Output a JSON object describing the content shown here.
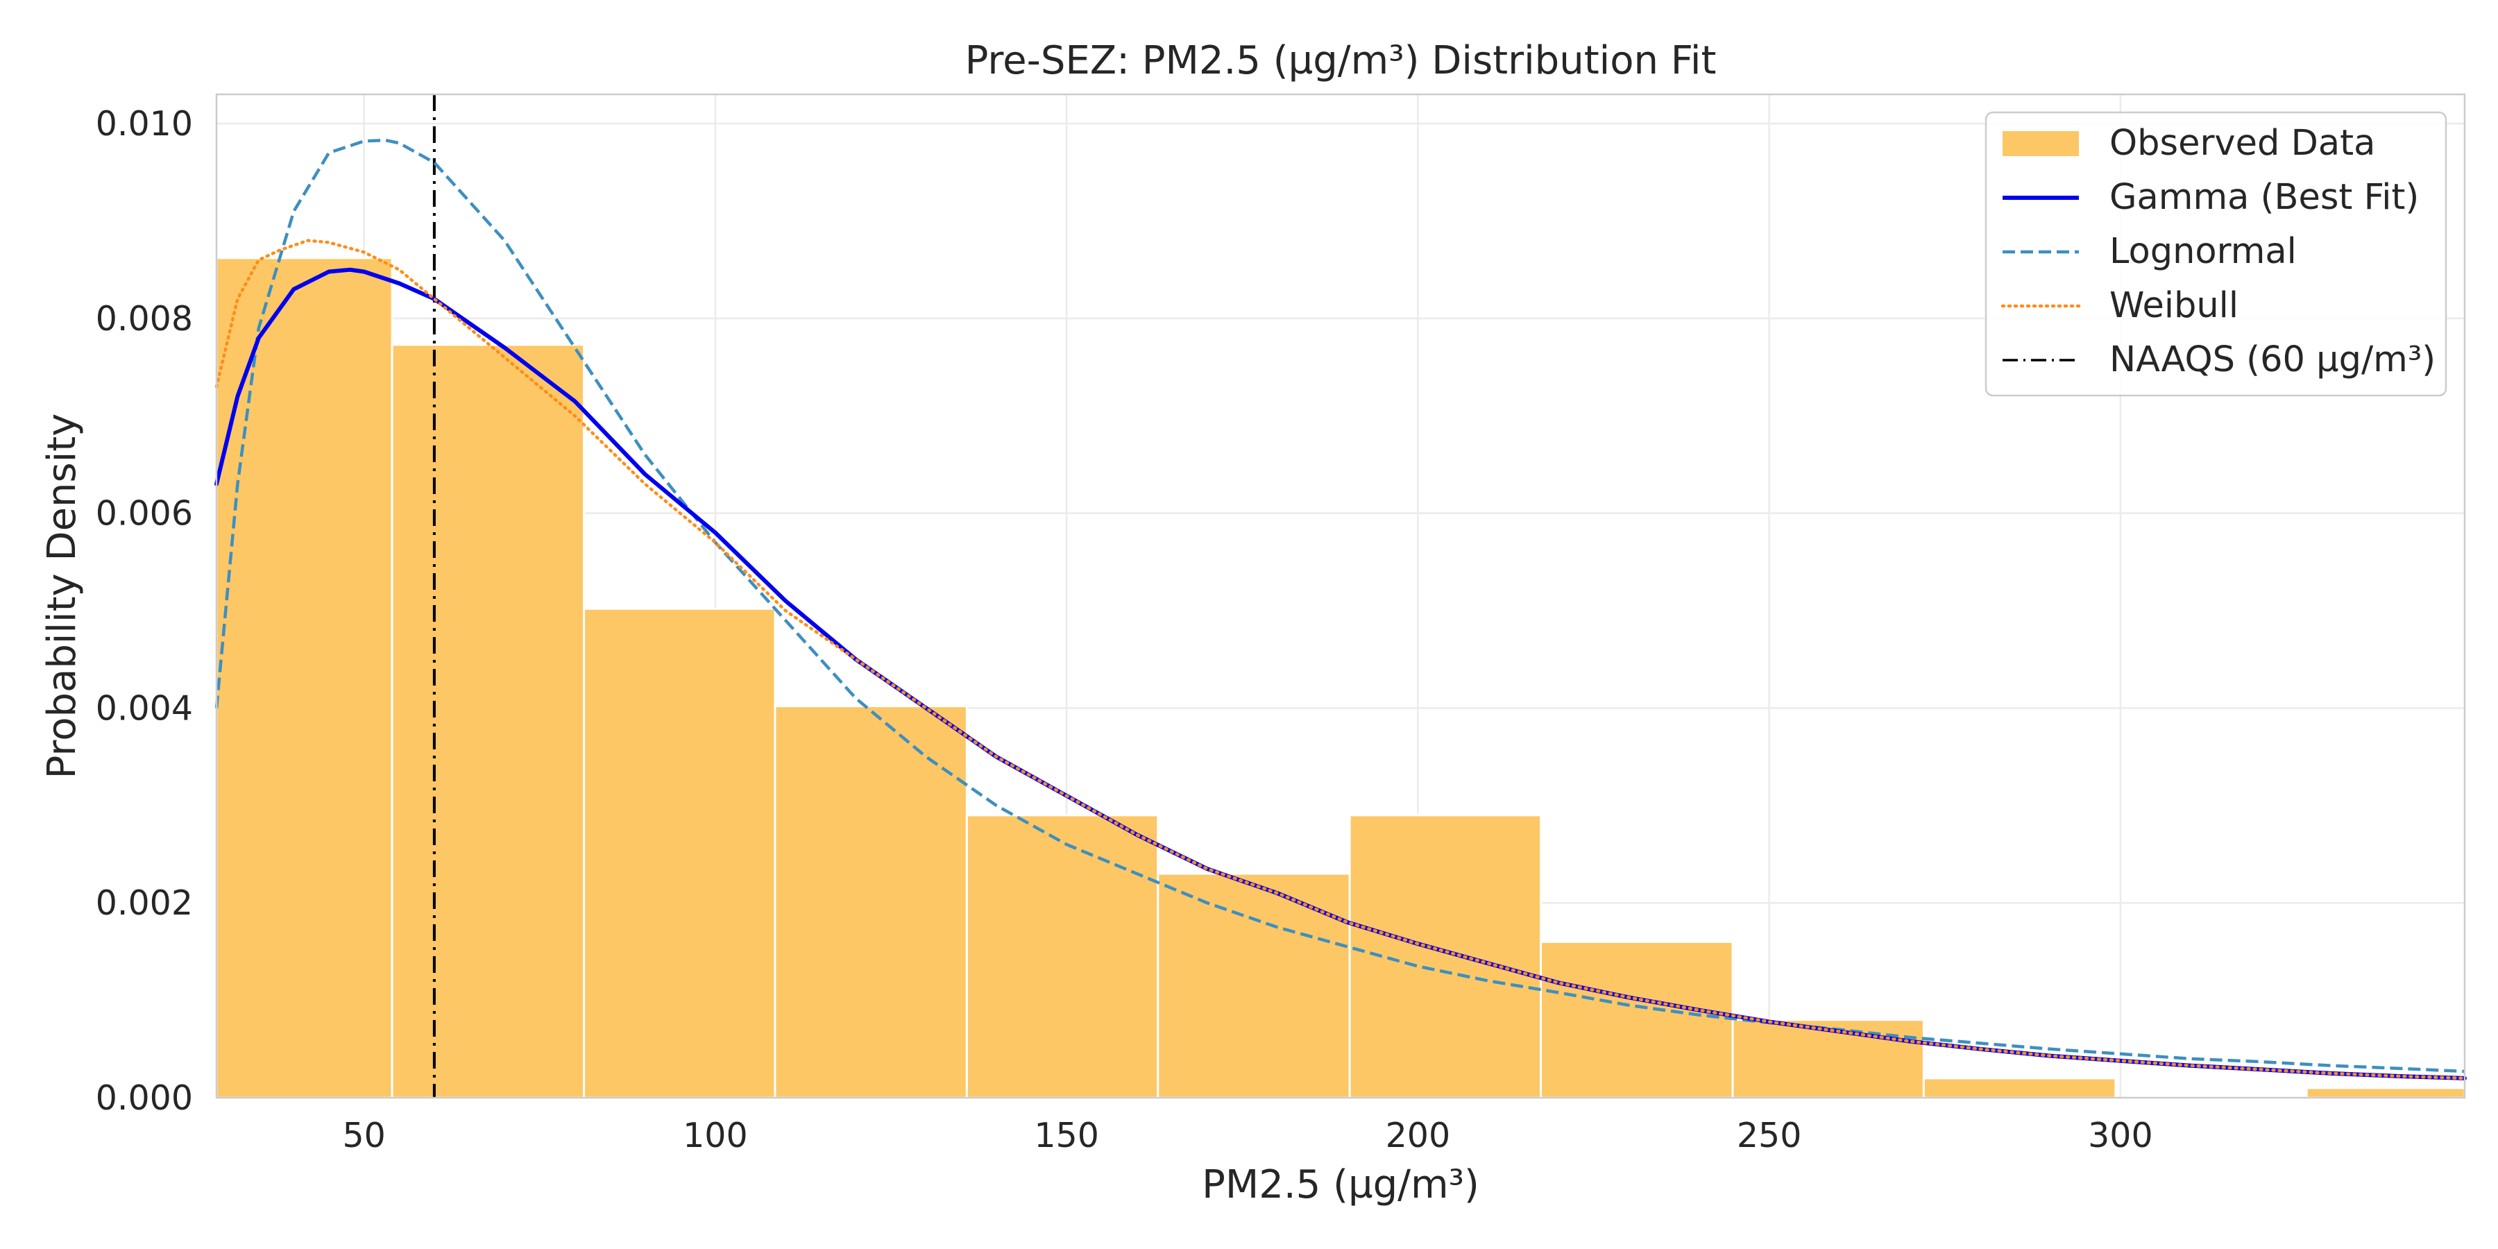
{
  "chart_data": {
    "type": "bar",
    "title": "Pre-SEZ: PM2.5 (µg/m³) Distribution Fit",
    "xlabel": "PM2.5 (µg/m³)",
    "ylabel": "Probability Density",
    "xlim": [
      29,
      349
    ],
    "ylim": [
      0,
      0.0103
    ],
    "xticks": [
      50,
      100,
      150,
      200,
      250,
      300
    ],
    "yticks": [
      0.0,
      0.002,
      0.004,
      0.006,
      0.008,
      0.01
    ],
    "ytick_labels": [
      "0.000",
      "0.002",
      "0.004",
      "0.006",
      "0.008",
      "0.010"
    ],
    "grid": true,
    "legend_position": "top-right",
    "histogram": {
      "name": "Observed Data",
      "color": "#fdc766",
      "bin_edges": [
        26.8,
        54.0,
        81.3,
        108.5,
        135.8,
        163.0,
        190.3,
        217.5,
        244.8,
        272.0,
        299.3,
        326.5,
        353.8
      ],
      "density": [
        0.00862,
        0.00773,
        0.00502,
        0.00402,
        0.0029,
        0.0023,
        0.0029,
        0.0016,
        0.0008,
        0.0002,
        0.0,
        0.0001
      ]
    },
    "series": [
      {
        "name": "Gamma (Best Fit)",
        "color": "#0000ee",
        "style": "solid",
        "x": [
          29,
          32,
          35,
          40,
          45,
          48,
          50,
          55,
          60,
          70,
          80,
          90,
          100,
          110,
          120,
          130,
          140,
          150,
          160,
          170,
          180,
          190,
          200,
          210,
          220,
          230,
          240,
          250,
          260,
          270,
          280,
          290,
          300,
          310,
          320,
          330,
          340,
          349
        ],
        "y": [
          0.0063,
          0.0072,
          0.0078,
          0.0083,
          0.00848,
          0.0085,
          0.00848,
          0.00836,
          0.0082,
          0.0077,
          0.00715,
          0.0064,
          0.0058,
          0.0051,
          0.0045,
          0.004,
          0.0035,
          0.0031,
          0.0027,
          0.00235,
          0.0021,
          0.0018,
          0.00158,
          0.00138,
          0.00118,
          0.00103,
          0.0009,
          0.00078,
          0.00068,
          0.00058,
          0.0005,
          0.00043,
          0.00038,
          0.00033,
          0.00029,
          0.00025,
          0.00022,
          0.0002
        ]
      },
      {
        "name": "Lognormal",
        "color": "#3d8fc0",
        "style": "dashed",
        "x": [
          29,
          32,
          35,
          40,
          45,
          50,
          53,
          55,
          60,
          70,
          80,
          90,
          100,
          110,
          120,
          130,
          140,
          150,
          160,
          170,
          180,
          190,
          200,
          210,
          220,
          230,
          240,
          250,
          260,
          270,
          280,
          290,
          300,
          310,
          320,
          330,
          340,
          349
        ],
        "y": [
          0.004,
          0.0063,
          0.0079,
          0.0091,
          0.0097,
          0.00982,
          0.00983,
          0.0098,
          0.0096,
          0.0088,
          0.0077,
          0.0066,
          0.0057,
          0.0049,
          0.0041,
          0.0035,
          0.003,
          0.0026,
          0.0023,
          0.002,
          0.00175,
          0.00155,
          0.00135,
          0.0012,
          0.00108,
          0.00095,
          0.00085,
          0.00077,
          0.0007,
          0.00062,
          0.00056,
          0.0005,
          0.00045,
          0.0004,
          0.00037,
          0.00033,
          0.0003,
          0.00027
        ]
      },
      {
        "name": "Weibull",
        "color": "#ff8c1a",
        "style": "dotted",
        "x": [
          29,
          32,
          35,
          38,
          42,
          45,
          50,
          55,
          60,
          70,
          80,
          90,
          100,
          110,
          120,
          130,
          140,
          150,
          160,
          170,
          180,
          190,
          200,
          210,
          220,
          230,
          240,
          250,
          260,
          270,
          280,
          290,
          300,
          310,
          320,
          330,
          340,
          349
        ],
        "y": [
          0.0073,
          0.0082,
          0.0086,
          0.0087,
          0.0088,
          0.00878,
          0.00868,
          0.0085,
          0.0082,
          0.0076,
          0.007,
          0.0063,
          0.0057,
          0.005,
          0.0045,
          0.004,
          0.0035,
          0.0031,
          0.0027,
          0.00235,
          0.0021,
          0.0018,
          0.00158,
          0.00138,
          0.00118,
          0.00103,
          0.0009,
          0.00078,
          0.00068,
          0.00058,
          0.0005,
          0.00043,
          0.00038,
          0.00033,
          0.00029,
          0.00025,
          0.00022,
          0.0002
        ]
      }
    ],
    "vline": {
      "name": "NAAQS (60 µg/m³)",
      "x": 60,
      "color": "#000000",
      "style": "dashdot"
    }
  }
}
